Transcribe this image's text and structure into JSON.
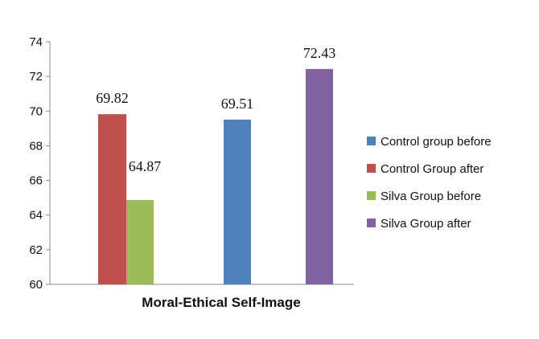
{
  "chart_data": {
    "type": "bar",
    "title": "",
    "xlabel": "Moral-Ethical Self-Image",
    "ylabel": "",
    "ylim": [
      60,
      74
    ],
    "yticks": [
      60,
      62,
      64,
      66,
      68,
      70,
      72,
      74
    ],
    "grid": false,
    "legend_position": "right",
    "series": [
      {
        "name": "Control group before",
        "color": "#4F81BD",
        "value": 69.51,
        "label": "69.51"
      },
      {
        "name": "Control Group after",
        "color": "#C0504D",
        "value": 69.82,
        "label": "69.82"
      },
      {
        "name": "Silva Group before",
        "color": "#9BBB59",
        "value": 64.87,
        "label": "64.87"
      },
      {
        "name": "Silva Group after",
        "color": "#8064A2",
        "value": 72.43,
        "label": "72.43"
      }
    ]
  }
}
